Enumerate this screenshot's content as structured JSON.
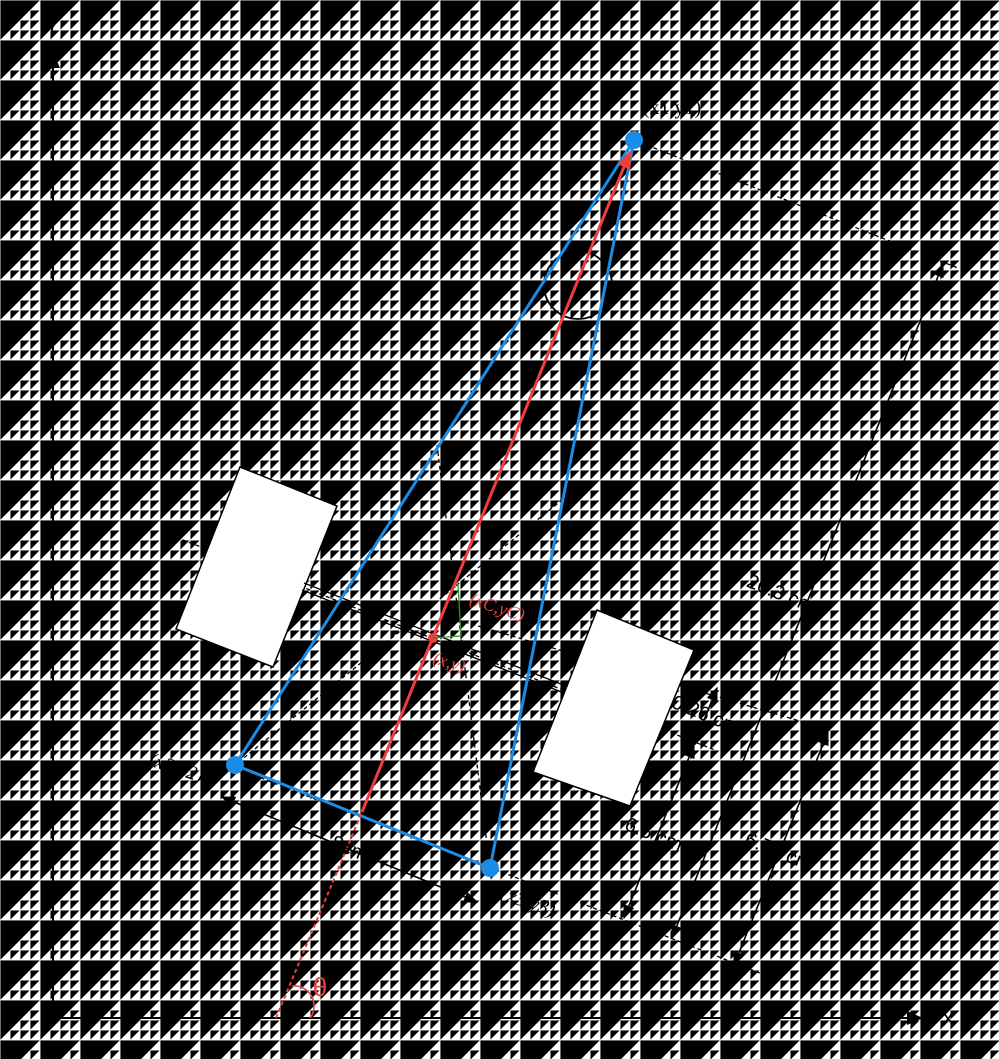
{
  "axes": {
    "x_label": "X",
    "y_label": "Y"
  },
  "points": {
    "p1": "(x1,y1)",
    "p2": "(x2,y2)",
    "p3": "(x3,y3)",
    "centroid": "(xC,yC)",
    "center": "(x,y)"
  },
  "dimensions": {
    "width": "8cm",
    "length": "20.3 cm",
    "offset": "0.26 cm",
    "axle_to_back": "6.5 cm",
    "centroid_to_back": "6.76 cm"
  },
  "angle": "θ",
  "colors": {
    "blue": "#1a8ce6",
    "red": "#f03c3c"
  }
}
